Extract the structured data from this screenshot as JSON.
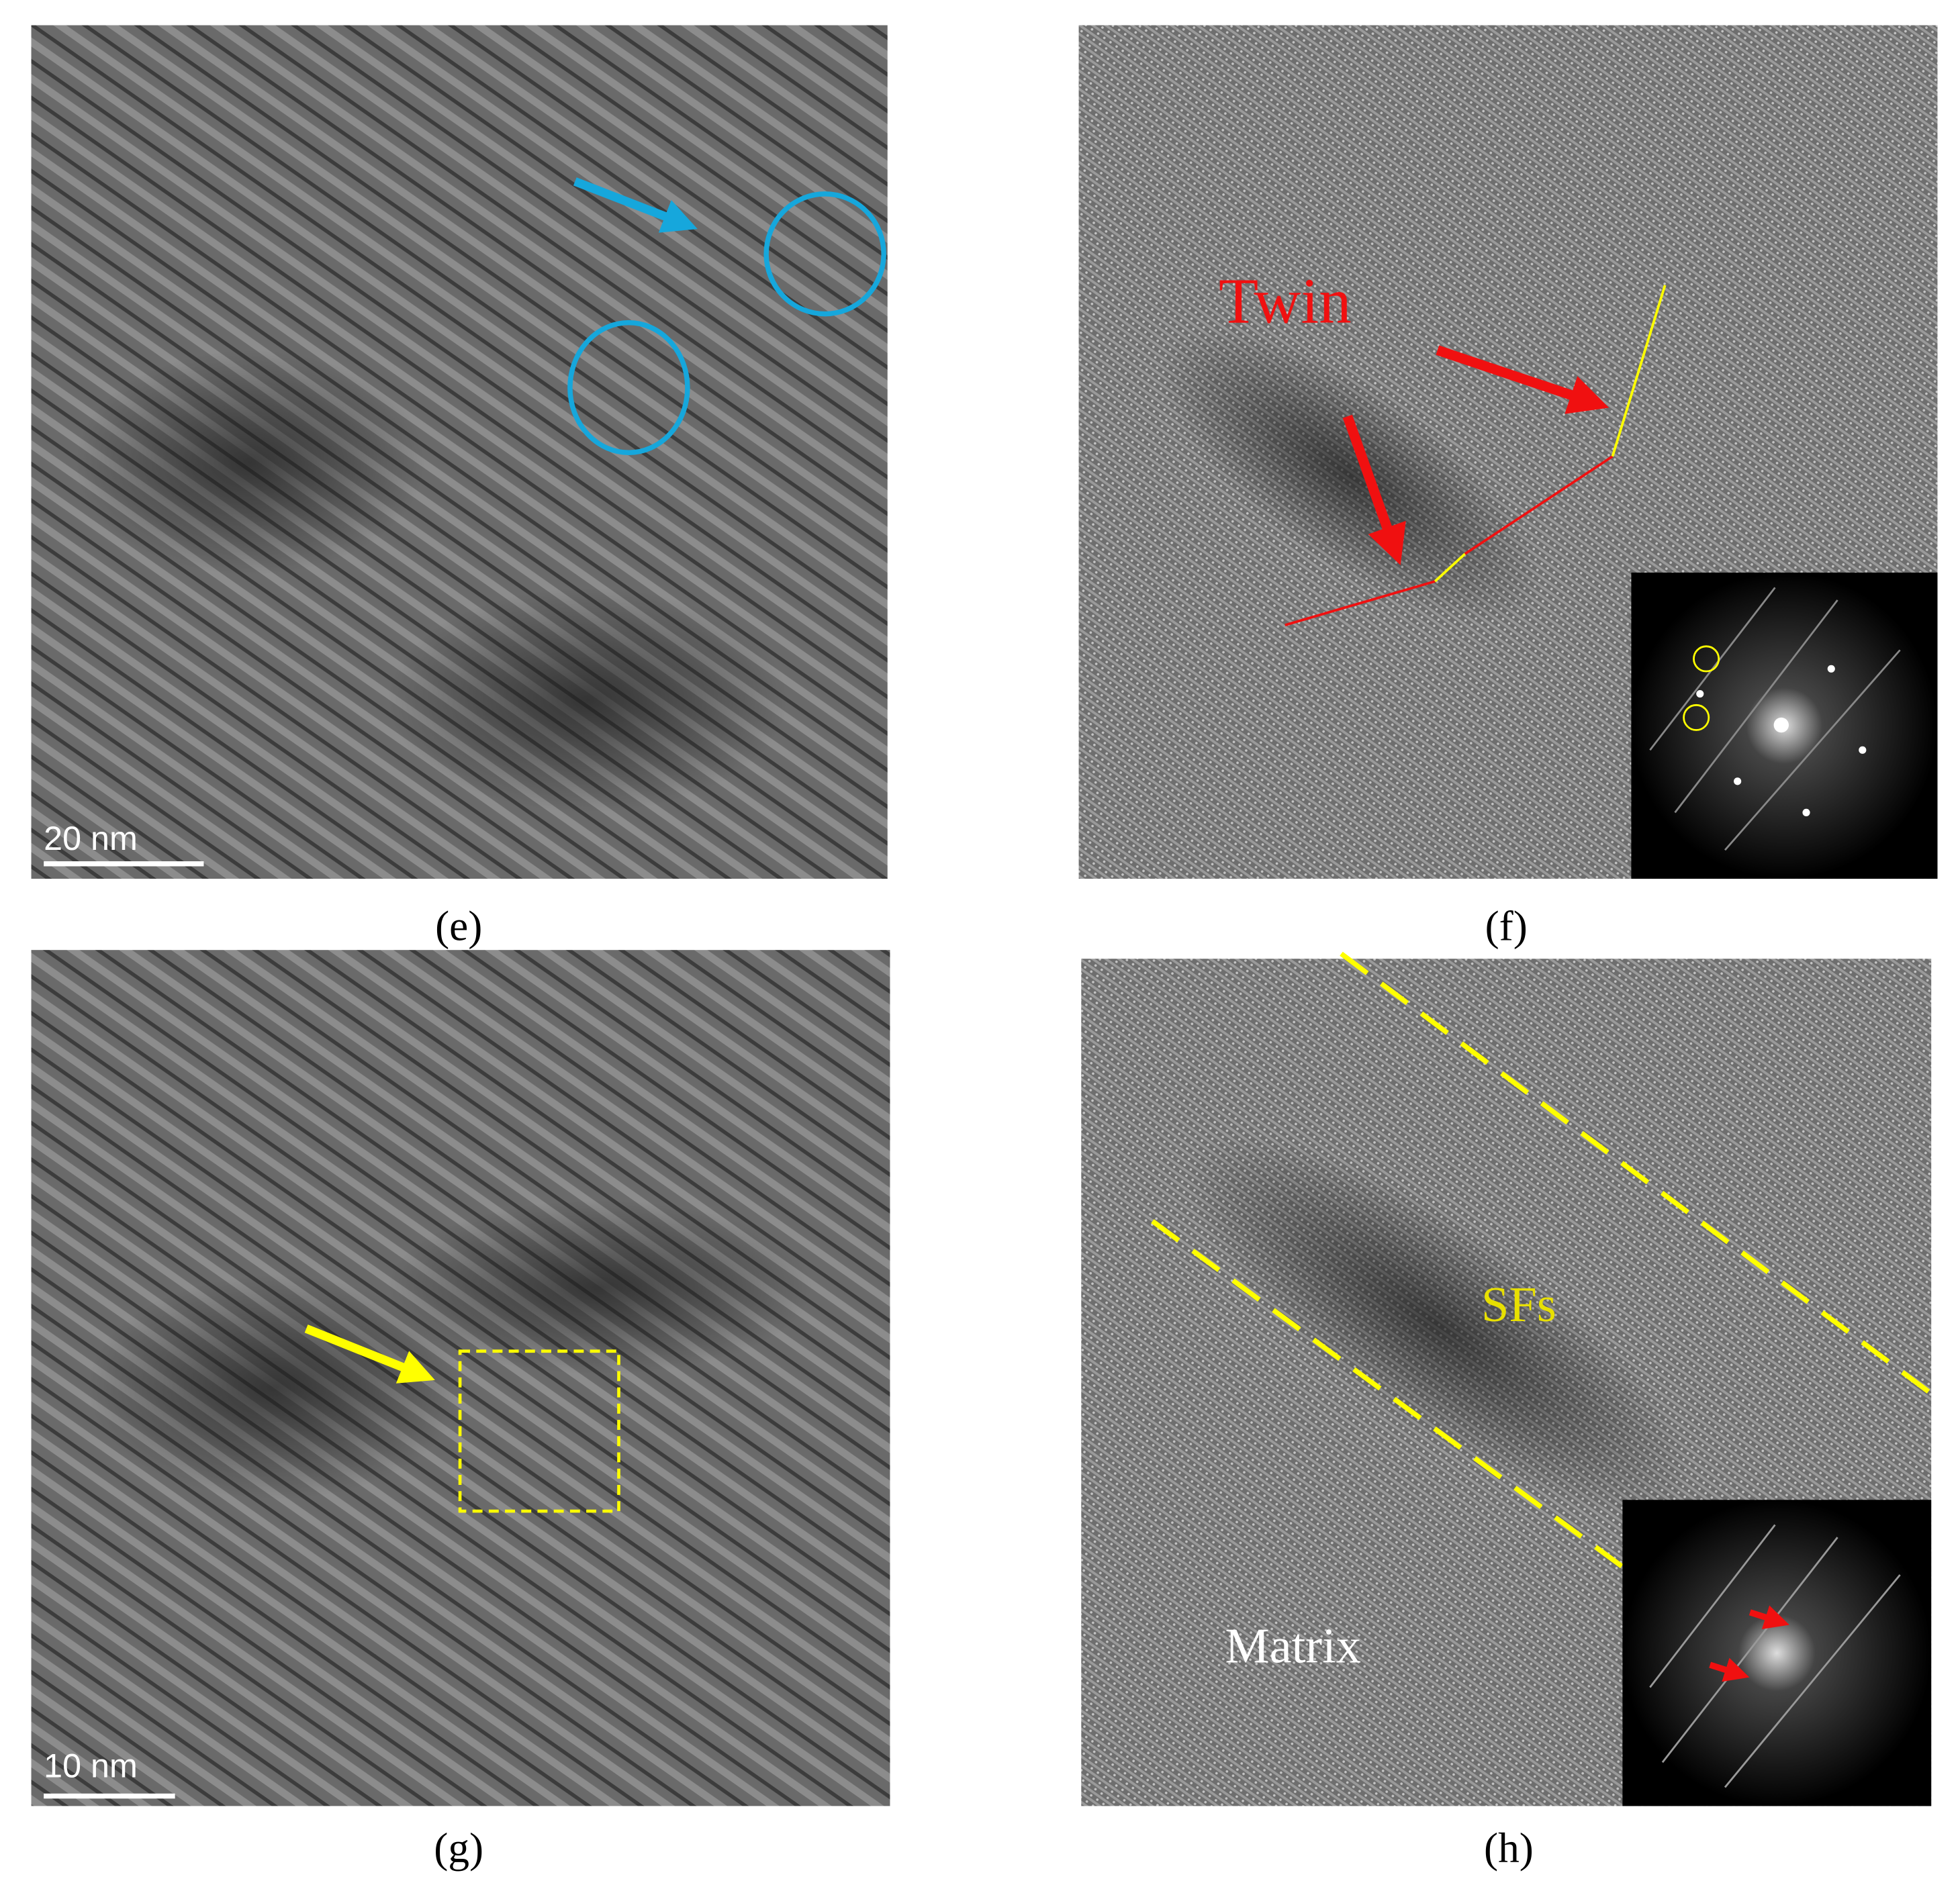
{
  "panels": [
    {
      "label": "(e)",
      "scale_bar": "20 nm"
    },
    {
      "label": "(f)",
      "annotation": "Twin"
    },
    {
      "label": "(g)",
      "scale_bar": "10 nm"
    },
    {
      "label": "(h)",
      "annotations": [
        "SFs",
        "Matrix"
      ]
    }
  ]
}
